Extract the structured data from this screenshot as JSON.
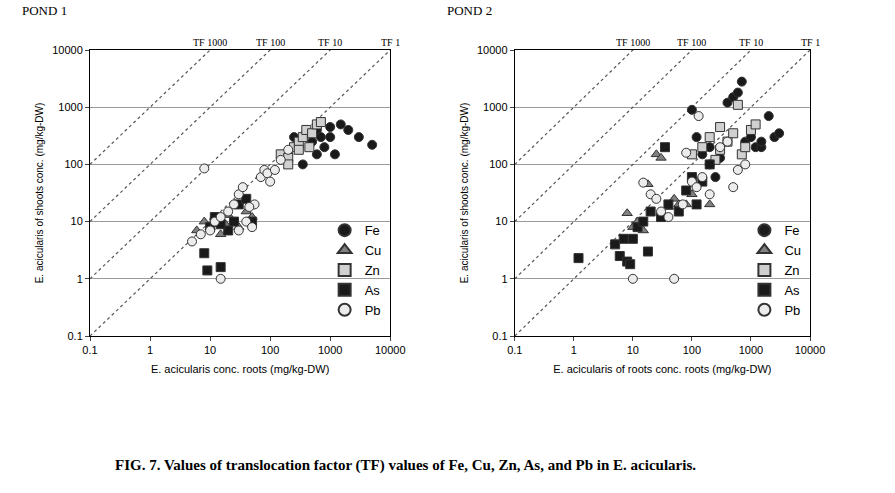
{
  "caption": "FIG. 7. Values of translocation factor (TF) values of Fe, Cu, Zn, As, and Pb in E. acicularis.",
  "chart_data": [
    {
      "type": "scatter",
      "title": "POND 1",
      "x_label": "E. acicularis conc. roots (mg/kg-DW)",
      "y_label": "E. acicularis of shoots conc. (mg/kg-DW)",
      "log": true,
      "grid": true,
      "legend": "right",
      "xlim": [
        0.1,
        10000
      ],
      "ylim": [
        0.1,
        10000
      ],
      "xticks": [
        0.1,
        1,
        10,
        100,
        1000,
        10000
      ],
      "yticks": [
        0.1,
        1,
        10,
        100,
        1000,
        10000
      ],
      "reference_lines": [
        {
          "label": "TF 1000",
          "value": 1000
        },
        {
          "label": "TF 100",
          "value": 100
        },
        {
          "label": "TF 10",
          "value": 10
        },
        {
          "label": "TF 1",
          "value": 1
        }
      ],
      "series": [
        {
          "name": "Fe",
          "color": "#1a1a1a",
          "marker": "circle",
          "x": [
            200,
            300,
            400,
            500,
            600,
            700,
            800,
            1000,
            1200,
            1500,
            2000,
            3000,
            5000,
            1000,
            350,
            250,
            600
          ],
          "values": [
            150,
            200,
            350,
            250,
            400,
            300,
            200,
            300,
            150,
            500,
            400,
            300,
            220,
            450,
            100,
            300,
            150
          ]
        },
        {
          "name": "Cu",
          "color": "#808080",
          "marker": "triangle-up",
          "x": [
            6,
            8,
            10,
            12,
            15,
            20,
            25,
            30,
            40,
            50,
            18
          ],
          "values": [
            7,
            10,
            8,
            12,
            6,
            13,
            10,
            8,
            15,
            12,
            9
          ]
        },
        {
          "name": "Zn",
          "color": "#d0d0d0",
          "marker": "square",
          "x": [
            150,
            200,
            250,
            300,
            350,
            400,
            500,
            600,
            700,
            450,
            300,
            200
          ],
          "values": [
            150,
            130,
            200,
            250,
            300,
            400,
            350,
            500,
            550,
            200,
            180,
            100
          ]
        },
        {
          "name": "As",
          "color": "#1a1a1a",
          "marker": "square",
          "x": [
            8,
            9,
            10,
            12,
            15,
            12,
            20,
            25,
            30,
            40,
            50,
            15
          ],
          "values": [
            2.8,
            1.4,
            8,
            10,
            1.6,
            12,
            7,
            10,
            20,
            25,
            10,
            9
          ]
        },
        {
          "name": "Pb",
          "color": "#ececec",
          "marker": "circle",
          "x": [
            5,
            7,
            10,
            12,
            15,
            15,
            20,
            25,
            30,
            35,
            40,
            50,
            55,
            70,
            80,
            90,
            100,
            120,
            150,
            200,
            8,
            30,
            45
          ],
          "values": [
            4.5,
            6,
            7,
            10,
            1,
            12,
            15,
            20,
            30,
            40,
            10,
            8,
            20,
            60,
            80,
            70,
            50,
            80,
            120,
            180,
            85,
            7,
            18
          ]
        }
      ]
    },
    {
      "type": "scatter",
      "title": "POND 2",
      "x_label": "E. acicularis of roots conc. roots (mg/kg-DW)",
      "y_label": "E. acicularis of shoots conc. (mg/kg-DW)",
      "log": true,
      "grid": true,
      "legend": "right",
      "xlim": [
        0.1,
        10000
      ],
      "ylim": [
        0.1,
        10000
      ],
      "xticks": [
        0.1,
        1,
        10,
        100,
        1000,
        10000
      ],
      "yticks": [
        0.1,
        1,
        10,
        100,
        1000,
        10000
      ],
      "reference_lines": [
        {
          "label": "TF 1000",
          "value": 1000
        },
        {
          "label": "TF 100",
          "value": 100
        },
        {
          "label": "TF 10",
          "value": 10
        },
        {
          "label": "TF 1",
          "value": 1
        }
      ],
      "series": [
        {
          "name": "Fe",
          "color": "#1a1a1a",
          "marker": "circle",
          "x": [
            100,
            120,
            150,
            200,
            250,
            300,
            400,
            500,
            600,
            700,
            800,
            1000,
            1200,
            1500,
            2000,
            2500,
            3000,
            1500,
            200
          ],
          "values": [
            900,
            300,
            150,
            100,
            60,
            130,
            1200,
            1500,
            1800,
            2800,
            250,
            300,
            200,
            200,
            700,
            300,
            350,
            250,
            200
          ]
        },
        {
          "name": "Cu",
          "color": "#808080",
          "marker": "triangle-up",
          "x": [
            8,
            10,
            12,
            18,
            25,
            30,
            40,
            50,
            60,
            80,
            100,
            200,
            15
          ],
          "values": [
            14,
            8,
            10,
            45,
            150,
            130,
            18,
            25,
            20,
            20,
            30,
            20,
            7
          ]
        },
        {
          "name": "Zn",
          "color": "#d0d0d0",
          "marker": "square",
          "x": [
            100,
            150,
            200,
            300,
            400,
            500,
            600,
            700,
            800,
            1000,
            1200,
            300,
            250
          ],
          "values": [
            150,
            200,
            300,
            450,
            250,
            350,
            1100,
            150,
            200,
            400,
            500,
            180,
            120
          ]
        },
        {
          "name": "As",
          "color": "#1a1a1a",
          "marker": "square",
          "x": [
            1.2,
            5,
            6,
            7,
            8,
            9,
            10,
            12,
            15,
            18,
            20,
            30,
            35,
            40,
            60,
            80,
            100,
            150,
            200,
            120
          ],
          "values": [
            2.3,
            4,
            2.5,
            5,
            2,
            1.8,
            5,
            8,
            10,
            3,
            15,
            12,
            200,
            20,
            15,
            35,
            60,
            50,
            100,
            20
          ]
        },
        {
          "name": "Pb",
          "color": "#ececec",
          "marker": "circle",
          "x": [
            10,
            15,
            20,
            25,
            30,
            40,
            50,
            80,
            100,
            120,
            130,
            150,
            200,
            300,
            400,
            500,
            600,
            800,
            70
          ],
          "values": [
            1,
            48,
            30,
            25,
            15,
            12,
            1,
            160,
            50,
            40,
            700,
            60,
            30,
            200,
            250,
            40,
            80,
            100,
            20
          ]
        }
      ]
    }
  ]
}
